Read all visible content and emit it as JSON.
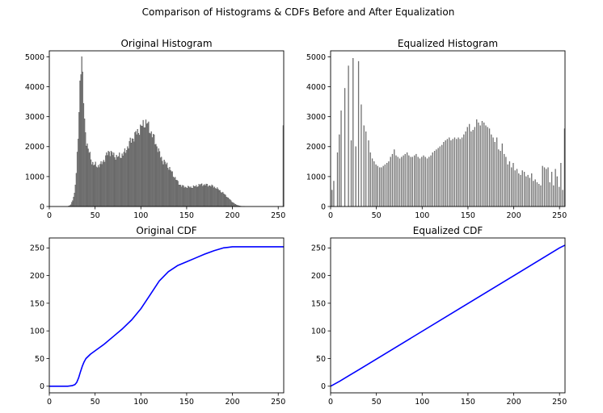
{
  "figure": {
    "suptitle": "Comparison of Histograms & CDFs Before and After Equalization"
  },
  "colors": {
    "hist_bar": "#808080",
    "hist_edge": "#3a3a3a",
    "cdf_line": "#0000ff",
    "axes": "#000000"
  },
  "chart_data": [
    {
      "type": "bar",
      "title": "Original Histogram",
      "xlabel": "",
      "ylabel": "",
      "xlim": [
        0,
        256
      ],
      "ylim": [
        0,
        5200
      ],
      "xticks": [
        0,
        50,
        100,
        150,
        200,
        250
      ],
      "yticks": [
        0,
        1000,
        2000,
        3000,
        4000,
        5000
      ],
      "grid": false,
      "profile": [
        [
          20,
          0
        ],
        [
          23,
          60
        ],
        [
          25,
          200
        ],
        [
          27,
          450
        ],
        [
          29,
          1100
        ],
        [
          30,
          1700
        ],
        [
          31,
          2300
        ],
        [
          32,
          3100
        ],
        [
          33,
          4200
        ],
        [
          34,
          4800
        ],
        [
          35,
          4900
        ],
        [
          36,
          4300
        ],
        [
          37,
          3500
        ],
        [
          38,
          2800
        ],
        [
          40,
          2200
        ],
        [
          42,
          1900
        ],
        [
          44,
          1700
        ],
        [
          46,
          1500
        ],
        [
          48,
          1400
        ],
        [
          52,
          1350
        ],
        [
          56,
          1400
        ],
        [
          60,
          1600
        ],
        [
          65,
          1850
        ],
        [
          70,
          1700
        ],
        [
          74,
          1650
        ],
        [
          78,
          1700
        ],
        [
          82,
          1800
        ],
        [
          86,
          2050
        ],
        [
          90,
          2250
        ],
        [
          95,
          2450
        ],
        [
          100,
          2650
        ],
        [
          104,
          2800
        ],
        [
          106,
          2800
        ],
        [
          108,
          2650
        ],
        [
          112,
          2400
        ],
        [
          116,
          2100
        ],
        [
          120,
          1750
        ],
        [
          124,
          1500
        ],
        [
          128,
          1400
        ],
        [
          132,
          1200
        ],
        [
          136,
          1000
        ],
        [
          140,
          800
        ],
        [
          144,
          680
        ],
        [
          148,
          650
        ],
        [
          152,
          640
        ],
        [
          156,
          650
        ],
        [
          160,
          680
        ],
        [
          165,
          730
        ],
        [
          170,
          720
        ],
        [
          175,
          700
        ],
        [
          180,
          650
        ],
        [
          185,
          550
        ],
        [
          190,
          430
        ],
        [
          195,
          280
        ],
        [
          200,
          130
        ],
        [
          204,
          50
        ],
        [
          208,
          15
        ],
        [
          214,
          0
        ],
        [
          254,
          0
        ],
        [
          255,
          2600
        ]
      ]
    },
    {
      "type": "bar",
      "title": "Equalized Histogram",
      "xlabel": "",
      "ylabel": "",
      "xlim": [
        0,
        256
      ],
      "ylim": [
        0,
        5200
      ],
      "xticks": [
        0,
        50,
        100,
        150,
        200,
        250
      ],
      "yticks": [
        0,
        1000,
        2000,
        3000,
        4000,
        5000
      ],
      "grid": false,
      "bars": [
        [
          1,
          550
        ],
        [
          3,
          850
        ],
        [
          7,
          1800
        ],
        [
          9,
          2400
        ],
        [
          11,
          3200
        ],
        [
          15,
          3950
        ],
        [
          19,
          4700
        ],
        [
          22,
          2200
        ],
        [
          24,
          4950
        ],
        [
          27,
          2000
        ],
        [
          30,
          4850
        ],
        [
          33,
          3400
        ],
        [
          36,
          2700
        ],
        [
          38,
          2500
        ],
        [
          41,
          2200
        ],
        [
          43,
          1800
        ],
        [
          45,
          1600
        ],
        [
          47,
          1500
        ],
        [
          49,
          1400
        ],
        [
          51,
          1350
        ],
        [
          53,
          1300
        ],
        [
          55,
          1300
        ],
        [
          57,
          1350
        ],
        [
          59,
          1400
        ],
        [
          61,
          1450
        ],
        [
          63,
          1500
        ],
        [
          65,
          1650
        ],
        [
          67,
          1750
        ],
        [
          69,
          1900
        ],
        [
          71,
          1700
        ],
        [
          73,
          1650
        ],
        [
          75,
          1600
        ],
        [
          77,
          1650
        ],
        [
          79,
          1700
        ],
        [
          81,
          1750
        ],
        [
          83,
          1800
        ],
        [
          85,
          1700
        ],
        [
          87,
          1650
        ],
        [
          89,
          1650
        ],
        [
          91,
          1700
        ],
        [
          93,
          1750
        ],
        [
          95,
          1650
        ],
        [
          97,
          1600
        ],
        [
          99,
          1650
        ],
        [
          101,
          1700
        ],
        [
          103,
          1650
        ],
        [
          105,
          1600
        ],
        [
          107,
          1650
        ],
        [
          109,
          1700
        ],
        [
          111,
          1800
        ],
        [
          113,
          1850
        ],
        [
          115,
          1900
        ],
        [
          117,
          1950
        ],
        [
          119,
          2000
        ],
        [
          121,
          2050
        ],
        [
          123,
          2150
        ],
        [
          125,
          2200
        ],
        [
          127,
          2250
        ],
        [
          129,
          2300
        ],
        [
          131,
          2200
        ],
        [
          133,
          2250
        ],
        [
          135,
          2300
        ],
        [
          137,
          2250
        ],
        [
          139,
          2300
        ],
        [
          141,
          2250
        ],
        [
          143,
          2300
        ],
        [
          145,
          2400
        ],
        [
          147,
          2500
        ],
        [
          149,
          2650
        ],
        [
          151,
          2750
        ],
        [
          153,
          2500
        ],
        [
          155,
          2550
        ],
        [
          157,
          2650
        ],
        [
          159,
          2900
        ],
        [
          161,
          2800
        ],
        [
          163,
          2700
        ],
        [
          165,
          2850
        ],
        [
          167,
          2800
        ],
        [
          169,
          2700
        ],
        [
          171,
          2650
        ],
        [
          173,
          2600
        ],
        [
          175,
          2400
        ],
        [
          177,
          2300
        ],
        [
          179,
          2150
        ],
        [
          181,
          2300
        ],
        [
          183,
          1900
        ],
        [
          185,
          1850
        ],
        [
          187,
          2100
        ],
        [
          189,
          1750
        ],
        [
          191,
          1650
        ],
        [
          193,
          1400
        ],
        [
          195,
          1500
        ],
        [
          197,
          1300
        ],
        [
          199,
          1450
        ],
        [
          201,
          1200
        ],
        [
          203,
          1250
        ],
        [
          205,
          1100
        ],
        [
          207,
          1050
        ],
        [
          209,
          1200
        ],
        [
          211,
          1150
        ],
        [
          213,
          1000
        ],
        [
          215,
          1050
        ],
        [
          217,
          950
        ],
        [
          219,
          1100
        ],
        [
          221,
          850
        ],
        [
          223,
          900
        ],
        [
          225,
          800
        ],
        [
          227,
          750
        ],
        [
          229,
          700
        ],
        [
          231,
          1350
        ],
        [
          233,
          1300
        ],
        [
          235,
          1250
        ],
        [
          237,
          1300
        ],
        [
          239,
          800
        ],
        [
          241,
          1150
        ],
        [
          243,
          700
        ],
        [
          245,
          1250
        ],
        [
          247,
          1000
        ],
        [
          249,
          650
        ],
        [
          251,
          1450
        ],
        [
          253,
          550
        ],
        [
          255,
          2600
        ]
      ]
    },
    {
      "type": "line",
      "title": "Original CDF",
      "xlabel": "",
      "ylabel": "",
      "xlim": [
        0,
        256
      ],
      "ylim": [
        -12,
        268
      ],
      "xticks": [
        0,
        50,
        100,
        150,
        200,
        250
      ],
      "yticks": [
        0,
        50,
        100,
        150,
        200,
        250
      ],
      "grid": false,
      "series": [
        {
          "x": [
            0,
            20,
            25,
            28,
            30,
            32,
            34,
            36,
            38,
            40,
            45,
            50,
            55,
            60,
            70,
            80,
            90,
            100,
            110,
            120,
            130,
            140,
            150,
            160,
            170,
            180,
            190,
            195,
            200,
            210,
            220,
            240,
            256
          ],
          "y": [
            0,
            0,
            1,
            3,
            7,
            15,
            26,
            36,
            44,
            50,
            58,
            64,
            70,
            76,
            90,
            104,
            120,
            140,
            165,
            190,
            207,
            218,
            225,
            232,
            239,
            245,
            250,
            251,
            252,
            252,
            252,
            252,
            252
          ]
        }
      ]
    },
    {
      "type": "line",
      "title": "Equalized CDF",
      "xlabel": "",
      "ylabel": "",
      "xlim": [
        0,
        256
      ],
      "ylim": [
        -12,
        268
      ],
      "xticks": [
        0,
        50,
        100,
        150,
        200,
        250
      ],
      "yticks": [
        0,
        50,
        100,
        150,
        200,
        250
      ],
      "grid": false,
      "series": [
        {
          "x": [
            0,
            10,
            20,
            30,
            40,
            250,
            256
          ],
          "y": [
            0,
            9,
            19,
            29,
            39,
            250,
            255
          ]
        }
      ]
    }
  ]
}
